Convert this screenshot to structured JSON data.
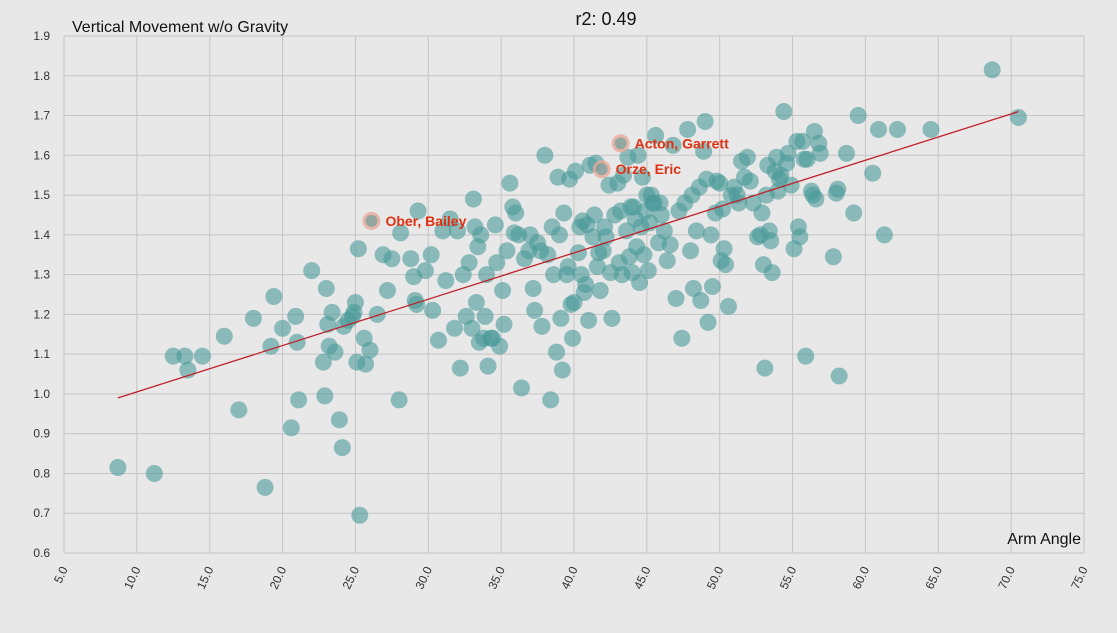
{
  "chart_data": {
    "type": "scatter",
    "title": "r2: 0.49",
    "ylabel": "Vertical Movement w/o Gravity",
    "xlabel": "Arm Angle",
    "xlim": [
      5,
      75
    ],
    "ylim": [
      0.6,
      1.9
    ],
    "x_ticks": [
      "5.0",
      "10.0",
      "15.0",
      "20.0",
      "25.0",
      "30.0",
      "35.0",
      "40.0",
      "45.0",
      "50.0",
      "55.0",
      "60.0",
      "65.0",
      "70.0",
      "75.0"
    ],
    "y_ticks": [
      "0.6",
      "0.7",
      "0.8",
      "0.9",
      "1.0",
      "1.1",
      "1.2",
      "1.3",
      "1.4",
      "1.5",
      "1.6",
      "1.7",
      "1.8",
      "1.9"
    ],
    "grid": true,
    "colors": {
      "point": "#4a9a9a",
      "trend": "#c0202a",
      "highlight": "#e8a898",
      "annotation": "#e03010",
      "grid": "#c4c4c4",
      "background": "#e8e8e8"
    },
    "trendline": {
      "x": [
        8.7,
        70.5
      ],
      "y": [
        0.99,
        1.71
      ]
    },
    "highlighted": [
      {
        "label": "Acton, Garrett",
        "x": 43.2,
        "y": 1.63
      },
      {
        "label": "Orze, Eric",
        "x": 41.9,
        "y": 1.565
      },
      {
        "label": "Ober, Bailey",
        "x": 26.1,
        "y": 1.435
      }
    ],
    "points": [
      [
        8.7,
        0.815
      ],
      [
        11.2,
        0.8
      ],
      [
        12.5,
        1.095
      ],
      [
        13.3,
        1.095
      ],
      [
        13.5,
        1.06
      ],
      [
        14.5,
        1.095
      ],
      [
        16.0,
        1.145
      ],
      [
        17.0,
        0.96
      ],
      [
        18.0,
        1.19
      ],
      [
        18.8,
        0.765
      ],
      [
        19.2,
        1.12
      ],
      [
        19.4,
        1.245
      ],
      [
        20.0,
        1.165
      ],
      [
        20.6,
        0.915
      ],
      [
        20.9,
        1.195
      ],
      [
        21.0,
        1.13
      ],
      [
        21.1,
        0.985
      ],
      [
        22.0,
        1.31
      ],
      [
        22.8,
        1.08
      ],
      [
        22.9,
        0.995
      ],
      [
        23.0,
        1.265
      ],
      [
        23.1,
        1.175
      ],
      [
        23.2,
        1.12
      ],
      [
        23.4,
        1.205
      ],
      [
        23.6,
        1.105
      ],
      [
        23.9,
        0.935
      ],
      [
        24.1,
        0.865
      ],
      [
        24.2,
        1.17
      ],
      [
        24.5,
        1.185
      ],
      [
        24.8,
        1.195
      ],
      [
        24.9,
        1.205
      ],
      [
        25.0,
        1.23
      ],
      [
        25.1,
        1.08
      ],
      [
        25.2,
        1.365
      ],
      [
        25.3,
        0.695
      ],
      [
        25.6,
        1.14
      ],
      [
        25.7,
        1.075
      ],
      [
        26.0,
        1.11
      ],
      [
        26.5,
        1.2
      ],
      [
        26.9,
        1.35
      ],
      [
        27.2,
        1.26
      ],
      [
        27.5,
        1.34
      ],
      [
        28.0,
        0.985
      ],
      [
        28.1,
        1.405
      ],
      [
        28.8,
        1.34
      ],
      [
        29.0,
        1.295
      ],
      [
        29.1,
        1.235
      ],
      [
        29.2,
        1.225
      ],
      [
        29.3,
        1.46
      ],
      [
        29.8,
        1.31
      ],
      [
        30.2,
        1.35
      ],
      [
        30.3,
        1.21
      ],
      [
        30.7,
        1.135
      ],
      [
        31.0,
        1.41
      ],
      [
        31.2,
        1.285
      ],
      [
        31.5,
        1.44
      ],
      [
        31.8,
        1.165
      ],
      [
        32.0,
        1.41
      ],
      [
        32.2,
        1.065
      ],
      [
        32.4,
        1.3
      ],
      [
        32.6,
        1.195
      ],
      [
        32.8,
        1.33
      ],
      [
        33.0,
        1.165
      ],
      [
        33.1,
        1.49
      ],
      [
        33.2,
        1.42
      ],
      [
        33.3,
        1.23
      ],
      [
        33.4,
        1.37
      ],
      [
        33.5,
        1.13
      ],
      [
        33.6,
        1.4
      ],
      [
        33.8,
        1.14
      ],
      [
        33.9,
        1.195
      ],
      [
        34.0,
        1.3
      ],
      [
        34.1,
        1.07
      ],
      [
        34.3,
        1.14
      ],
      [
        34.4,
        1.14
      ],
      [
        34.6,
        1.425
      ],
      [
        34.7,
        1.33
      ],
      [
        34.9,
        1.12
      ],
      [
        35.1,
        1.26
      ],
      [
        35.2,
        1.175
      ],
      [
        35.4,
        1.36
      ],
      [
        35.6,
        1.53
      ],
      [
        35.8,
        1.47
      ],
      [
        35.9,
        1.405
      ],
      [
        36.0,
        1.455
      ],
      [
        36.2,
        1.4
      ],
      [
        36.4,
        1.015
      ],
      [
        36.6,
        1.34
      ],
      [
        36.9,
        1.36
      ],
      [
        37.0,
        1.4
      ],
      [
        37.2,
        1.265
      ],
      [
        37.3,
        1.21
      ],
      [
        37.5,
        1.38
      ],
      [
        37.7,
        1.36
      ],
      [
        37.8,
        1.17
      ],
      [
        38.0,
        1.6
      ],
      [
        38.2,
        1.35
      ],
      [
        38.4,
        0.985
      ],
      [
        38.5,
        1.42
      ],
      [
        38.6,
        1.3
      ],
      [
        38.8,
        1.105
      ],
      [
        38.9,
        1.545
      ],
      [
        39.0,
        1.4
      ],
      [
        39.1,
        1.19
      ],
      [
        39.2,
        1.06
      ],
      [
        39.3,
        1.455
      ],
      [
        39.5,
        1.3
      ],
      [
        39.6,
        1.32
      ],
      [
        39.7,
        1.54
      ],
      [
        39.8,
        1.225
      ],
      [
        39.9,
        1.14
      ],
      [
        40.0,
        1.23
      ],
      [
        40.1,
        1.56
      ],
      [
        40.3,
        1.355
      ],
      [
        40.4,
        1.42
      ],
      [
        40.5,
        1.3
      ],
      [
        40.6,
        1.435
      ],
      [
        40.7,
        1.255
      ],
      [
        40.8,
        1.275
      ],
      [
        40.9,
        1.425
      ],
      [
        41.0,
        1.185
      ],
      [
        41.1,
        1.575
      ],
      [
        41.3,
        1.395
      ],
      [
        41.4,
        1.45
      ],
      [
        41.5,
        1.58
      ],
      [
        41.6,
        1.32
      ],
      [
        41.7,
        1.355
      ],
      [
        41.8,
        1.26
      ],
      [
        42.0,
        1.36
      ],
      [
        42.1,
        1.42
      ],
      [
        42.2,
        1.395
      ],
      [
        42.4,
        1.525
      ],
      [
        42.5,
        1.305
      ],
      [
        42.6,
        1.19
      ],
      [
        42.8,
        1.45
      ],
      [
        43.0,
        1.53
      ],
      [
        43.1,
        1.33
      ],
      [
        43.2,
        1.46
      ],
      [
        43.3,
        1.3
      ],
      [
        43.4,
        1.55
      ],
      [
        43.6,
        1.41
      ],
      [
        43.7,
        1.595
      ],
      [
        43.8,
        1.345
      ],
      [
        43.9,
        1.47
      ],
      [
        44.0,
        1.305
      ],
      [
        44.1,
        1.47
      ],
      [
        44.2,
        1.44
      ],
      [
        44.3,
        1.37
      ],
      [
        44.4,
        1.6
      ],
      [
        44.5,
        1.28
      ],
      [
        44.6,
        1.42
      ],
      [
        44.7,
        1.545
      ],
      [
        44.8,
        1.35
      ],
      [
        44.9,
        1.46
      ],
      [
        45.0,
        1.5
      ],
      [
        45.1,
        1.31
      ],
      [
        45.2,
        1.43
      ],
      [
        45.3,
        1.5
      ],
      [
        45.4,
        1.48
      ],
      [
        45.5,
        1.48
      ],
      [
        45.6,
        1.65
      ],
      [
        45.8,
        1.38
      ],
      [
        45.9,
        1.48
      ],
      [
        46.0,
        1.45
      ],
      [
        46.2,
        1.41
      ],
      [
        46.4,
        1.335
      ],
      [
        46.6,
        1.375
      ],
      [
        46.8,
        1.625
      ],
      [
        47.0,
        1.24
      ],
      [
        47.2,
        1.46
      ],
      [
        47.4,
        1.14
      ],
      [
        47.6,
        1.48
      ],
      [
        47.8,
        1.665
      ],
      [
        48.0,
        1.36
      ],
      [
        48.1,
        1.5
      ],
      [
        48.2,
        1.265
      ],
      [
        48.4,
        1.41
      ],
      [
        48.6,
        1.52
      ],
      [
        48.7,
        1.235
      ],
      [
        48.9,
        1.61
      ],
      [
        49.0,
        1.685
      ],
      [
        49.1,
        1.54
      ],
      [
        49.2,
        1.18
      ],
      [
        49.4,
        1.4
      ],
      [
        49.5,
        1.27
      ],
      [
        49.7,
        1.455
      ],
      [
        49.8,
        1.535
      ],
      [
        50.0,
        1.53
      ],
      [
        50.1,
        1.335
      ],
      [
        50.2,
        1.465
      ],
      [
        50.3,
        1.365
      ],
      [
        50.4,
        1.325
      ],
      [
        50.6,
        1.22
      ],
      [
        50.8,
        1.5
      ],
      [
        51.0,
        1.52
      ],
      [
        51.2,
        1.5
      ],
      [
        51.3,
        1.48
      ],
      [
        51.5,
        1.585
      ],
      [
        51.7,
        1.545
      ],
      [
        51.9,
        1.595
      ],
      [
        52.1,
        1.535
      ],
      [
        52.3,
        1.48
      ],
      [
        52.6,
        1.395
      ],
      [
        52.8,
        1.4
      ],
      [
        52.9,
        1.455
      ],
      [
        53.0,
        1.325
      ],
      [
        53.1,
        1.065
      ],
      [
        53.2,
        1.5
      ],
      [
        53.3,
        1.575
      ],
      [
        53.4,
        1.41
      ],
      [
        53.5,
        1.385
      ],
      [
        53.6,
        1.305
      ],
      [
        53.8,
        1.56
      ],
      [
        53.9,
        1.595
      ],
      [
        54.0,
        1.51
      ],
      [
        54.1,
        1.54
      ],
      [
        54.2,
        1.55
      ],
      [
        54.4,
        1.71
      ],
      [
        54.6,
        1.58
      ],
      [
        54.7,
        1.605
      ],
      [
        54.9,
        1.525
      ],
      [
        55.1,
        1.365
      ],
      [
        55.3,
        1.635
      ],
      [
        55.4,
        1.42
      ],
      [
        55.5,
        1.395
      ],
      [
        55.7,
        1.635
      ],
      [
        55.8,
        1.59
      ],
      [
        55.9,
        1.095
      ],
      [
        56.0,
        1.59
      ],
      [
        56.3,
        1.51
      ],
      [
        56.4,
        1.5
      ],
      [
        56.5,
        1.66
      ],
      [
        56.6,
        1.49
      ],
      [
        56.8,
        1.63
      ],
      [
        56.9,
        1.605
      ],
      [
        57.8,
        1.345
      ],
      [
        58.0,
        1.505
      ],
      [
        58.1,
        1.515
      ],
      [
        58.2,
        1.045
      ],
      [
        58.7,
        1.605
      ],
      [
        59.2,
        1.455
      ],
      [
        59.5,
        1.7
      ],
      [
        60.5,
        1.555
      ],
      [
        60.9,
        1.665
      ],
      [
        61.3,
        1.4
      ],
      [
        62.2,
        1.665
      ],
      [
        64.5,
        1.665
      ],
      [
        68.7,
        1.815
      ],
      [
        70.5,
        1.695
      ]
    ]
  }
}
